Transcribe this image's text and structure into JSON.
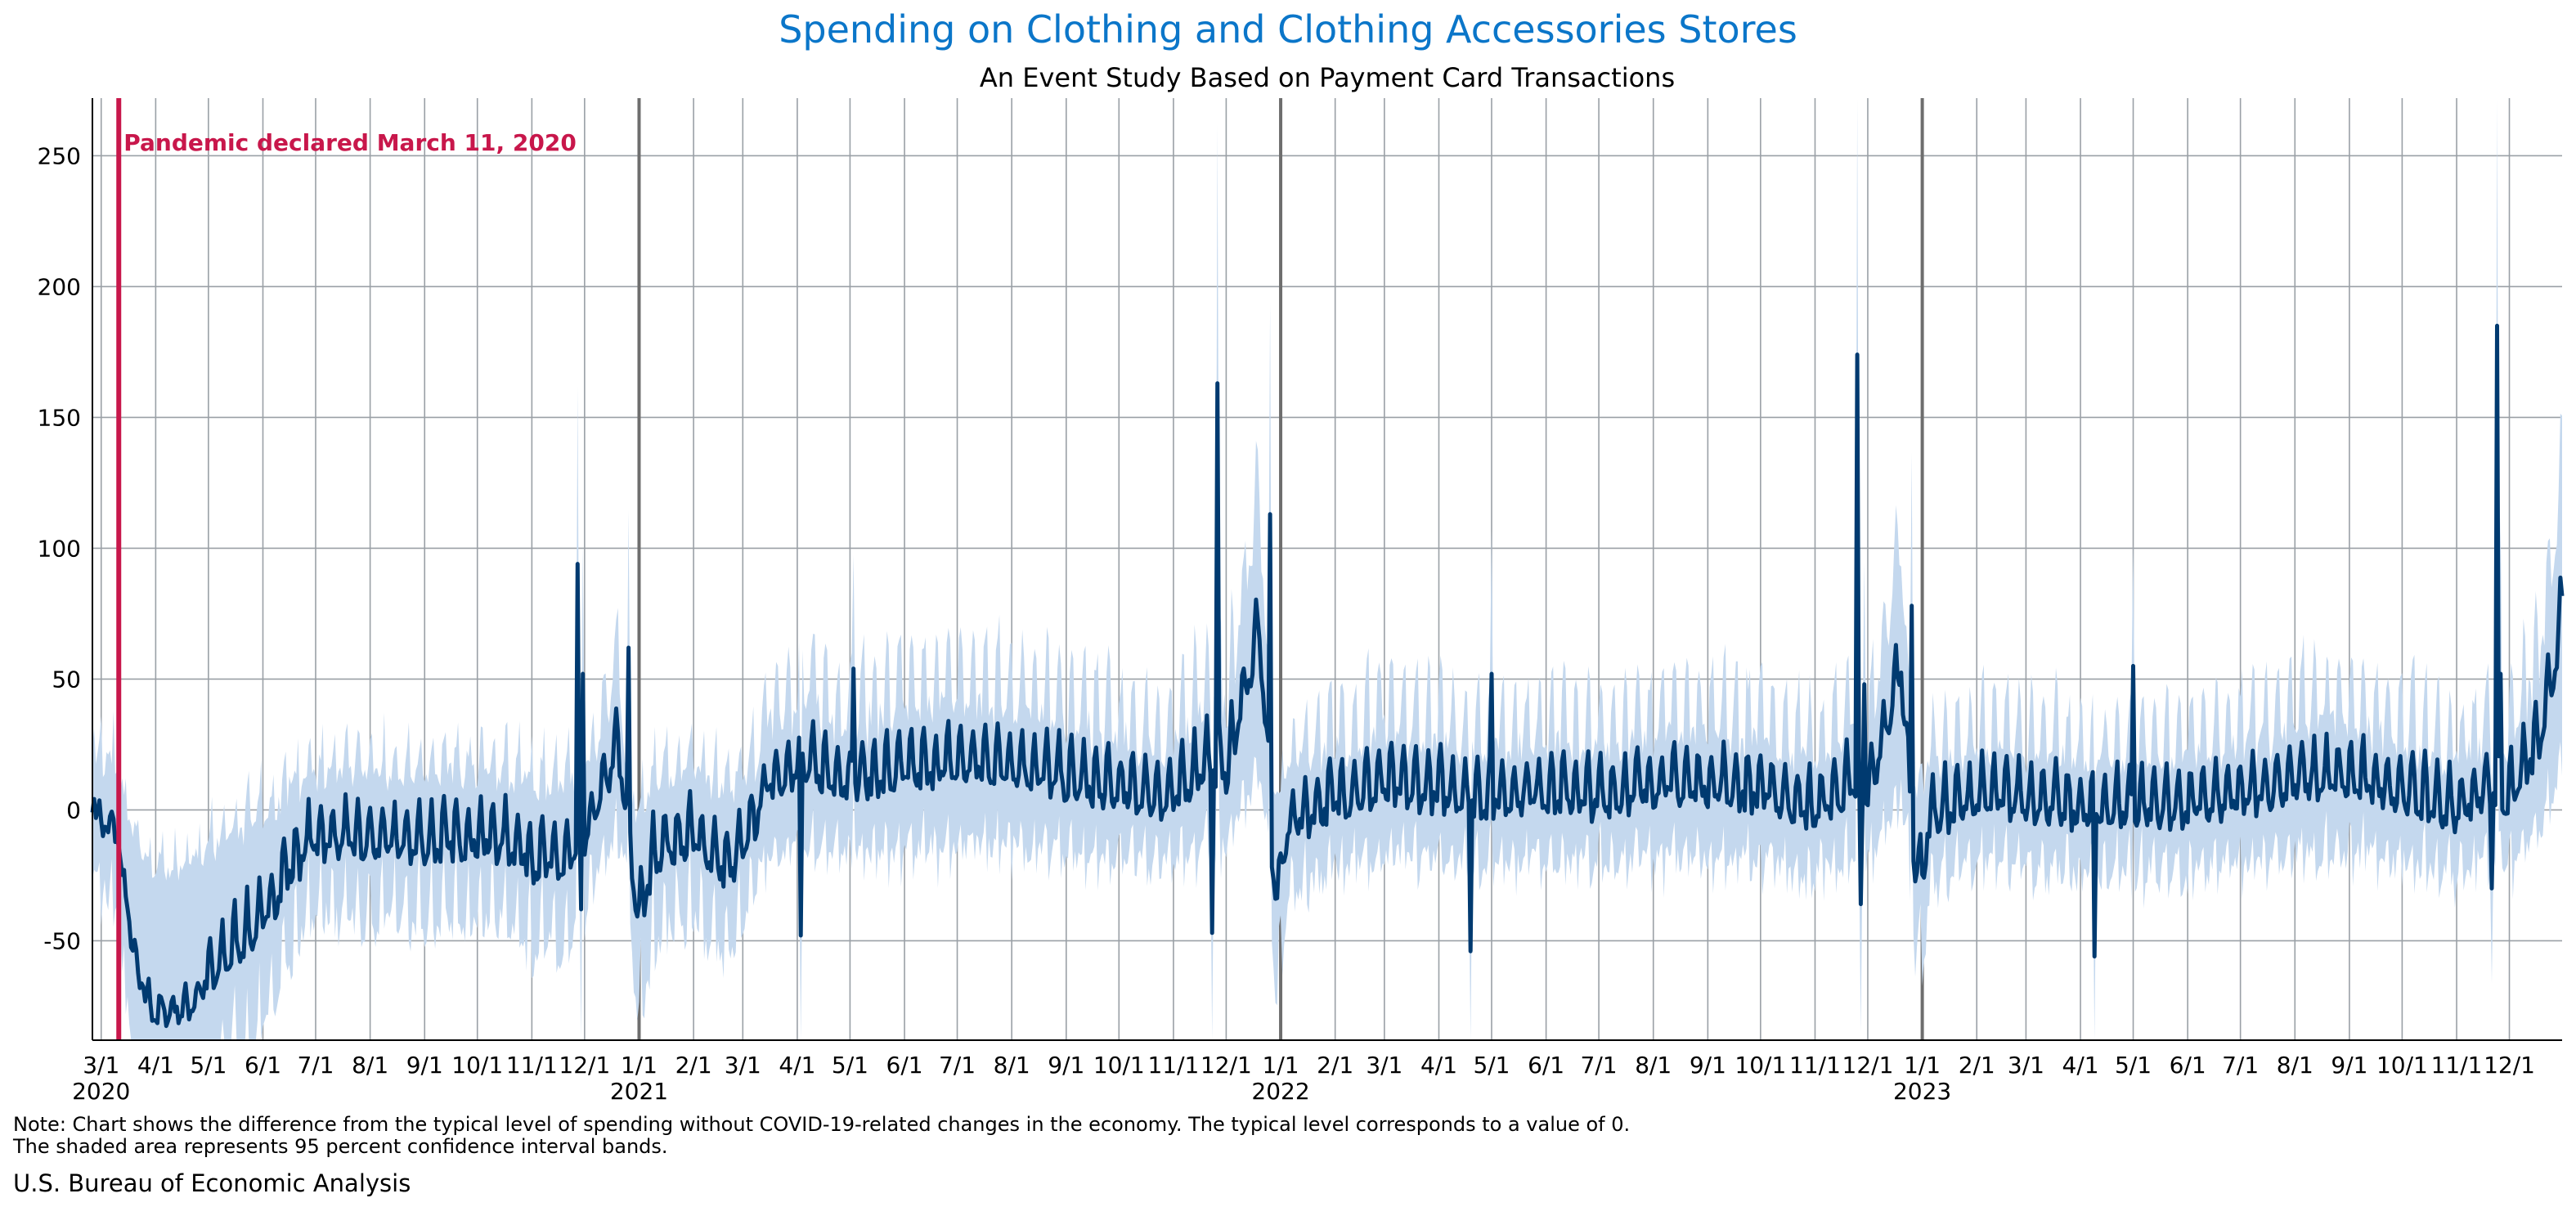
{
  "chart_data": {
    "type": "line",
    "title": "Spending on Clothing and Clothing Accessories Stores",
    "subtitle": "An Event Study Based on Payment Card Transactions",
    "x_range": [
      "2020-02-25",
      "2023-12-31"
    ],
    "ylim": [
      -88,
      272
    ],
    "yticks": [
      -50,
      0,
      50,
      100,
      150,
      200,
      250
    ],
    "x_month_ticks": [
      "3/1",
      "4/1",
      "5/1",
      "6/1",
      "7/1",
      "8/1",
      "9/1",
      "10/1",
      "11/1",
      "12/1",
      "1/1",
      "2/1",
      "3/1",
      "4/1",
      "5/1",
      "6/1",
      "7/1",
      "8/1",
      "9/1",
      "10/1",
      "11/1",
      "12/1",
      "1/1",
      "2/1",
      "3/1",
      "4/1",
      "5/1",
      "6/1",
      "7/1",
      "8/1",
      "9/1",
      "10/1",
      "11/1",
      "12/1",
      "1/1",
      "2/1",
      "3/1",
      "4/1",
      "5/1",
      "6/1",
      "7/1",
      "8/1",
      "9/1",
      "10/1",
      "11/1",
      "12/1"
    ],
    "x_year_labels": [
      "2020",
      "2021",
      "2022",
      "2023"
    ],
    "grid": true,
    "event_line": {
      "date": "2020-03-11",
      "label": "Pandemic declared March 11, 2020",
      "color": "#c8174b"
    },
    "series": [
      {
        "name": "",
        "color": "#003a70",
        "band_color": "#c4d8ee",
        "anchors": [
          [
            "2020-02-25",
            5
          ],
          [
            "2020-03-01",
            -6
          ],
          [
            "2020-03-10",
            -8
          ],
          [
            "2020-03-14",
            -30
          ],
          [
            "2020-03-22",
            -65
          ],
          [
            "2020-04-01",
            -78
          ],
          [
            "2020-04-20",
            -75
          ],
          [
            "2020-05-01",
            -65
          ],
          [
            "2020-05-15",
            -52
          ],
          [
            "2020-06-01",
            -42
          ],
          [
            "2020-06-15",
            -22
          ],
          [
            "2020-07-01",
            -10
          ],
          [
            "2020-08-01",
            -12
          ],
          [
            "2020-09-01",
            -12
          ],
          [
            "2020-10-01",
            -10
          ],
          [
            "2020-10-20",
            -12
          ],
          [
            "2020-11-01",
            -18
          ],
          [
            "2020-11-20",
            -20
          ],
          [
            "2020-12-01",
            -12
          ],
          [
            "2020-12-20",
            25
          ],
          [
            "2021-01-01",
            -42
          ],
          [
            "2021-01-10",
            -15
          ],
          [
            "2021-02-01",
            -10
          ],
          [
            "2021-02-20",
            -22
          ],
          [
            "2021-03-01",
            -15
          ],
          [
            "2021-03-15",
            10
          ],
          [
            "2021-04-01",
            18
          ],
          [
            "2021-05-01",
            12
          ],
          [
            "2021-06-01",
            15
          ],
          [
            "2021-07-01",
            18
          ],
          [
            "2021-08-01",
            18
          ],
          [
            "2021-09-01",
            12
          ],
          [
            "2021-10-01",
            8
          ],
          [
            "2021-11-01",
            5
          ],
          [
            "2021-11-20",
            20
          ],
          [
            "2021-12-01",
            15
          ],
          [
            "2021-12-20",
            70
          ],
          [
            "2021-12-28",
            -25
          ],
          [
            "2022-01-01",
            -30
          ],
          [
            "2022-01-05",
            -5
          ],
          [
            "2022-02-01",
            5
          ],
          [
            "2022-03-01",
            10
          ],
          [
            "2022-04-01",
            8
          ],
          [
            "2022-05-01",
            5
          ],
          [
            "2022-06-01",
            8
          ],
          [
            "2022-07-01",
            5
          ],
          [
            "2022-08-01",
            10
          ],
          [
            "2022-09-01",
            10
          ],
          [
            "2022-10-01",
            8
          ],
          [
            "2022-11-01",
            0
          ],
          [
            "2022-11-20",
            10
          ],
          [
            "2022-12-01",
            5
          ],
          [
            "2022-12-20",
            55
          ],
          [
            "2022-12-28",
            -22
          ],
          [
            "2023-01-01",
            -25
          ],
          [
            "2023-01-05",
            -2
          ],
          [
            "2023-02-01",
            5
          ],
          [
            "2023-03-01",
            5
          ],
          [
            "2023-04-01",
            0
          ],
          [
            "2023-05-01",
            2
          ],
          [
            "2023-06-01",
            2
          ],
          [
            "2023-07-01",
            5
          ],
          [
            "2023-08-01",
            12
          ],
          [
            "2023-09-01",
            12
          ],
          [
            "2023-10-01",
            8
          ],
          [
            "2023-11-01",
            0
          ],
          [
            "2023-11-20",
            10
          ],
          [
            "2023-12-01",
            5
          ],
          [
            "2023-12-20",
            30
          ],
          [
            "2023-12-31",
            75
          ]
        ],
        "spikes": [
          [
            "2020-11-27",
            94
          ],
          [
            "2020-11-29",
            -38
          ],
          [
            "2020-11-30",
            52
          ],
          [
            "2020-12-26",
            62
          ],
          [
            "2021-04-03",
            -48
          ],
          [
            "2021-05-03",
            54
          ],
          [
            "2021-11-26",
            163
          ],
          [
            "2021-11-23",
            -47
          ],
          [
            "2021-12-26",
            113
          ],
          [
            "2022-04-19",
            -54
          ],
          [
            "2022-05-01",
            52
          ],
          [
            "2022-11-25",
            174
          ],
          [
            "2022-11-27",
            -36
          ],
          [
            "2022-11-29",
            48
          ],
          [
            "2022-12-26",
            78
          ],
          [
            "2023-04-09",
            -56
          ],
          [
            "2023-05-01",
            55
          ],
          [
            "2023-11-24",
            185
          ],
          [
            "2023-11-21",
            -30
          ],
          [
            "2023-11-26",
            52
          ]
        ]
      }
    ]
  },
  "note_line1": "Note: Chart shows the difference from the typical level of spending without COVID-19-related changes in the economy. The typical level corresponds to a value of 0.",
  "note_line2": "The shaded area represents 95 percent confidence interval bands.",
  "source": "U.S. Bureau of Economic Analysis"
}
